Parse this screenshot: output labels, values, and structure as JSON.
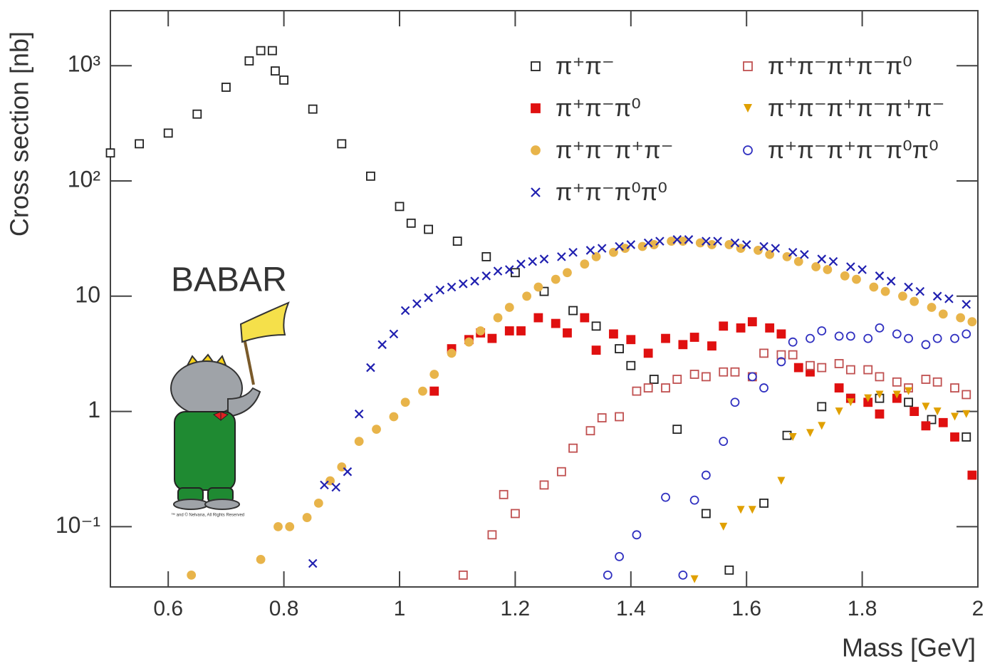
{
  "chart_data": {
    "type": "scatter",
    "y_label": "Cross section   [nb]",
    "x_label": "Mass   [GeV]",
    "annotation": "BABAR",
    "copyright": "™ and © Nelvana, All Rights Reserved",
    "xlim": [
      0.5,
      2.0
    ],
    "ylim": [
      0.03,
      3000
    ],
    "ylog": true,
    "xticks": [
      0.6,
      0.8,
      1,
      1.2,
      1.4,
      1.6,
      1.8,
      2
    ],
    "yticks": [
      {
        "value": 0.1,
        "label": "10⁻¹"
      },
      1,
      10,
      {
        "value": 100,
        "label": "10²"
      },
      {
        "value": 1000,
        "label": "10³"
      }
    ],
    "series": [
      {
        "name": "π⁺π⁻",
        "color": "#222222",
        "marker": "square-open",
        "x": [
          0.5,
          0.55,
          0.6,
          0.65,
          0.7,
          0.74,
          0.76,
          0.78,
          0.785,
          0.8,
          0.85,
          0.9,
          0.95,
          1.0,
          1.02,
          1.05,
          1.1,
          1.15,
          1.2,
          1.25,
          1.3,
          1.34,
          1.38,
          1.4,
          1.44,
          1.48,
          1.53,
          1.57,
          1.63,
          1.67,
          1.73,
          1.78,
          1.83,
          1.88,
          1.92,
          1.98
        ],
        "values": [
          175,
          210,
          260,
          380,
          650,
          1100,
          1350,
          1350,
          900,
          750,
          420,
          210,
          110,
          60,
          43,
          38,
          30,
          22,
          16,
          11,
          7.5,
          5.5,
          3.5,
          2.5,
          1.9,
          0.7,
          0.13,
          0.042,
          0.16,
          0.62,
          1.1,
          1.3,
          1.3,
          1.2,
          0.85,
          0.6
        ]
      },
      {
        "name": "π⁺π⁻π⁰",
        "color": "#e01010",
        "marker": "square",
        "x": [
          1.06,
          1.09,
          1.12,
          1.14,
          1.16,
          1.19,
          1.21,
          1.24,
          1.27,
          1.29,
          1.32,
          1.34,
          1.37,
          1.4,
          1.43,
          1.46,
          1.49,
          1.51,
          1.54,
          1.56,
          1.59,
          1.61,
          1.64,
          1.66,
          1.69,
          1.71,
          1.76,
          1.78,
          1.81,
          1.83,
          1.86,
          1.89,
          1.91,
          1.94,
          1.96,
          1.99
        ],
        "values": [
          1.5,
          3.5,
          4.2,
          4.8,
          4.3,
          5.0,
          5.0,
          6.5,
          5.8,
          4.8,
          6.5,
          3.4,
          4.7,
          4.2,
          3.2,
          4.3,
          3.8,
          4.4,
          3.7,
          5.5,
          5.3,
          6.0,
          5.3,
          4.7,
          2.4,
          2.2,
          1.6,
          1.3,
          1.2,
          0.95,
          1.3,
          1.0,
          0.75,
          0.8,
          0.6,
          0.28
        ]
      },
      {
        "name": "π⁺π⁻π⁺π⁻",
        "color": "#e8b44a",
        "marker": "circle",
        "x": [
          0.64,
          0.76,
          0.79,
          0.81,
          0.84,
          0.86,
          0.88,
          0.9,
          0.93,
          0.96,
          0.99,
          1.01,
          1.04,
          1.06,
          1.09,
          1.12,
          1.14,
          1.17,
          1.19,
          1.22,
          1.24,
          1.27,
          1.29,
          1.32,
          1.34,
          1.37,
          1.39,
          1.42,
          1.44,
          1.47,
          1.49,
          1.52,
          1.54,
          1.57,
          1.59,
          1.62,
          1.64,
          1.67,
          1.69,
          1.72,
          1.74,
          1.77,
          1.79,
          1.82,
          1.84,
          1.87,
          1.89,
          1.92,
          1.94,
          1.97,
          1.99
        ],
        "values": [
          0.038,
          0.052,
          0.1,
          0.1,
          0.12,
          0.16,
          0.25,
          0.33,
          0.55,
          0.7,
          0.9,
          1.2,
          1.5,
          2.1,
          3.2,
          4.0,
          5.0,
          6.5,
          8,
          10,
          12,
          14,
          16,
          19,
          22,
          24,
          26,
          27,
          28,
          30,
          30,
          29,
          28,
          28,
          26,
          25,
          23,
          22,
          20,
          18,
          17,
          15,
          14,
          12,
          11,
          10,
          9,
          8,
          7,
          6.5,
          6
        ]
      },
      {
        "name": "π⁺π⁻π⁰π⁰",
        "color": "#2020b0",
        "marker": "x",
        "x": [
          0.85,
          0.87,
          0.89,
          0.91,
          0.93,
          0.95,
          0.97,
          0.99,
          1.01,
          1.03,
          1.05,
          1.07,
          1.09,
          1.11,
          1.13,
          1.15,
          1.17,
          1.19,
          1.21,
          1.23,
          1.25,
          1.28,
          1.3,
          1.33,
          1.35,
          1.38,
          1.4,
          1.43,
          1.45,
          1.48,
          1.5,
          1.53,
          1.55,
          1.58,
          1.6,
          1.63,
          1.65,
          1.68,
          1.7,
          1.73,
          1.75,
          1.78,
          1.8,
          1.83,
          1.85,
          1.88,
          1.9,
          1.93,
          1.95,
          1.98
        ],
        "values": [
          0.048,
          0.23,
          0.22,
          0.3,
          0.95,
          2.4,
          3.8,
          4.7,
          7.5,
          8.6,
          9.7,
          11.3,
          12,
          12.8,
          13.5,
          15,
          16.5,
          17,
          19,
          20,
          21,
          22,
          24,
          25,
          26,
          27,
          28,
          29,
          30,
          31,
          31,
          30,
          30,
          29,
          28,
          27,
          26,
          24,
          23,
          21,
          20,
          18,
          17,
          15,
          13.5,
          12,
          11,
          10,
          9.5,
          8.5
        ]
      },
      {
        "name": "π⁺π⁻π⁺π⁻π⁰",
        "color": "#c05050",
        "marker": "square-open",
        "x": [
          1.11,
          1.16,
          1.18,
          1.2,
          1.25,
          1.28,
          1.3,
          1.33,
          1.35,
          1.38,
          1.41,
          1.43,
          1.46,
          1.48,
          1.51,
          1.53,
          1.56,
          1.58,
          1.61,
          1.63,
          1.66,
          1.68,
          1.71,
          1.73,
          1.76,
          1.78,
          1.81,
          1.83,
          1.86,
          1.88,
          1.91,
          1.93,
          1.96,
          1.98
        ],
        "values": [
          0.038,
          0.085,
          0.19,
          0.13,
          0.23,
          0.3,
          0.48,
          0.68,
          0.88,
          0.9,
          1.5,
          1.6,
          1.6,
          1.9,
          2.1,
          2.0,
          2.2,
          2.2,
          2.0,
          3.2,
          3.1,
          3.1,
          2.5,
          2.4,
          2.6,
          2.3,
          2.3,
          2.0,
          1.8,
          1.6,
          1.9,
          1.8,
          1.6,
          1.4
        ]
      },
      {
        "name": "π⁺π⁻π⁺π⁻π⁺π⁻",
        "color": "#e0a000",
        "marker": "triangle-down",
        "x": [
          1.51,
          1.56,
          1.59,
          1.61,
          1.66,
          1.68,
          1.71,
          1.73,
          1.76,
          1.78,
          1.81,
          1.83,
          1.86,
          1.88,
          1.91,
          1.93,
          1.96,
          1.98
        ],
        "values": [
          0.035,
          0.1,
          0.14,
          0.14,
          0.25,
          0.6,
          0.65,
          0.75,
          1.0,
          1.2,
          1.3,
          1.4,
          1.4,
          1.5,
          1.1,
          1.0,
          0.9,
          0.95
        ]
      },
      {
        "name": "π⁺π⁻π⁺π⁻π⁰π⁰",
        "color": "#3030c0",
        "marker": "circle-open",
        "x": [
          1.36,
          1.38,
          1.41,
          1.46,
          1.49,
          1.51,
          1.53,
          1.56,
          1.58,
          1.61,
          1.63,
          1.66,
          1.68,
          1.71,
          1.73,
          1.76,
          1.78,
          1.81,
          1.83,
          1.86,
          1.88,
          1.91,
          1.93,
          1.96,
          1.98
        ],
        "values": [
          0.038,
          0.055,
          0.085,
          0.18,
          0.038,
          0.17,
          0.28,
          0.55,
          1.2,
          2.0,
          1.6,
          2.7,
          4.0,
          4.3,
          5.0,
          4.5,
          4.5,
          4.3,
          5.3,
          4.7,
          4.3,
          3.8,
          4.3,
          4.3,
          4.7
        ]
      }
    ]
  }
}
